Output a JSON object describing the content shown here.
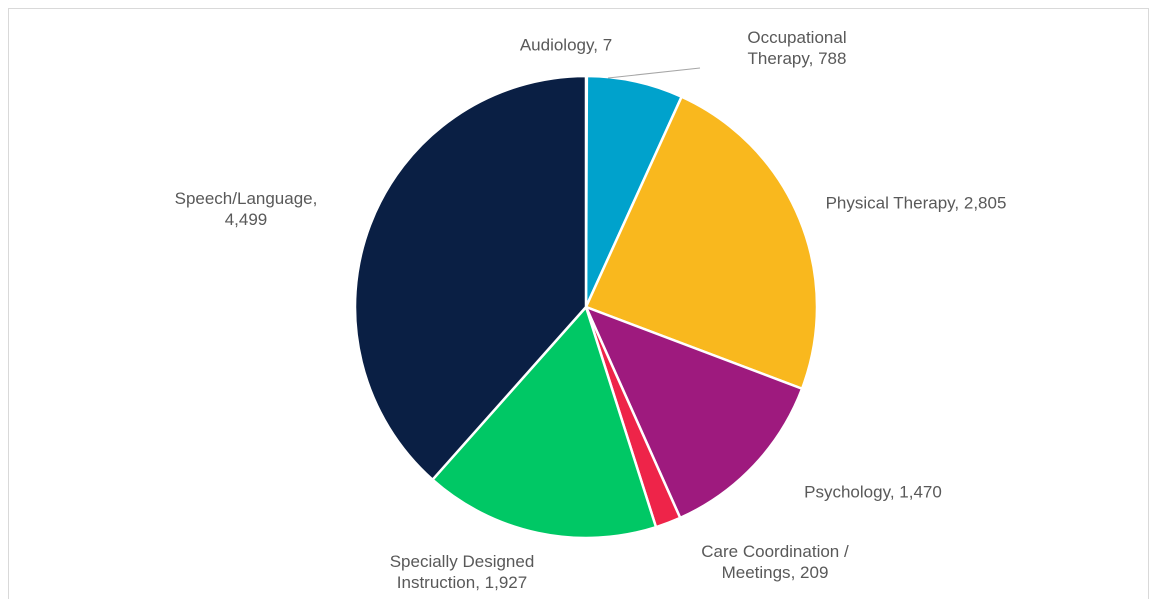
{
  "chart_data": {
    "type": "pie",
    "categories": [
      "Audiology",
      "Occupational Therapy",
      "Physical Therapy",
      "Psychology",
      "Care Coordination / Meetings",
      "Specially Designed Instruction",
      "Speech/Language"
    ],
    "values": [
      7,
      788,
      2805,
      1470,
      209,
      1927,
      4499
    ],
    "value_labels": [
      "7",
      "788",
      "2,805",
      "1,470",
      "209",
      "1,927",
      "4,499"
    ],
    "colors": [
      "#7f7f7f",
      "#00a2cc",
      "#f9b81e",
      "#9e1a7e",
      "#ee2449",
      "#00c865",
      "#0a1f44"
    ]
  }
}
